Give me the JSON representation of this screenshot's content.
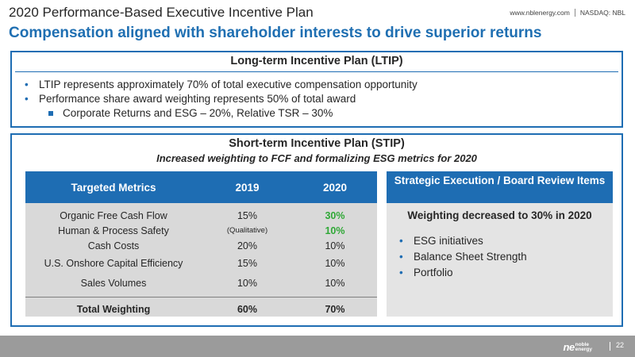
{
  "header": {
    "title": "2020 Performance-Based Executive Incentive Plan",
    "subtitle": "Compensation aligned with shareholder interests to drive superior returns",
    "website": "www.nblenergy.com",
    "ticker": "NASDAQ: NBL"
  },
  "ltip": {
    "title": "Long-term Incentive Plan (LTIP)",
    "bullets": [
      "LTIP represents approximately 70% of total executive compensation opportunity",
      "Performance share award weighting represents 50% of total award"
    ],
    "sub_bullet": "Corporate Returns and ESG – 20%, Relative TSR – 30%"
  },
  "stip": {
    "title": "Short-term Incentive Plan (STIP)",
    "subtitle": "Increased weighting to FCF and formalizing ESG metrics for 2020",
    "table": {
      "headers": [
        "Targeted Metrics",
        "2019",
        "2020"
      ],
      "rows": [
        [
          "Organic Free Cash Flow",
          "15%",
          "30%"
        ],
        [
          "Human & Process Safety",
          "(Qualitative)",
          "10%"
        ],
        [
          "Cash Costs",
          "20%",
          "10%"
        ],
        [
          "U.S. Onshore Capital Efficiency",
          "15%",
          "10%"
        ],
        [
          "Sales Volumes",
          "10%",
          "10%"
        ]
      ],
      "total": [
        "Total Weighting",
        "60%",
        "70%"
      ],
      "highlight_color": "#2fa836"
    },
    "strategic": {
      "header": "Strategic Execution / Board Review Items",
      "weighting": "Weighting decreased to 30% in 2020",
      "bullets": [
        "ESG initiatives",
        "Balance Sheet Strength",
        "Portfolio"
      ]
    }
  },
  "footer": {
    "logo_mark": "ne",
    "logo_word1": "noble",
    "logo_word2": "energy",
    "page_number": "22"
  },
  "colors": {
    "accent": "#1e6db3",
    "footer": "#9b9b9b",
    "table_bg": "#d9d9d9"
  }
}
